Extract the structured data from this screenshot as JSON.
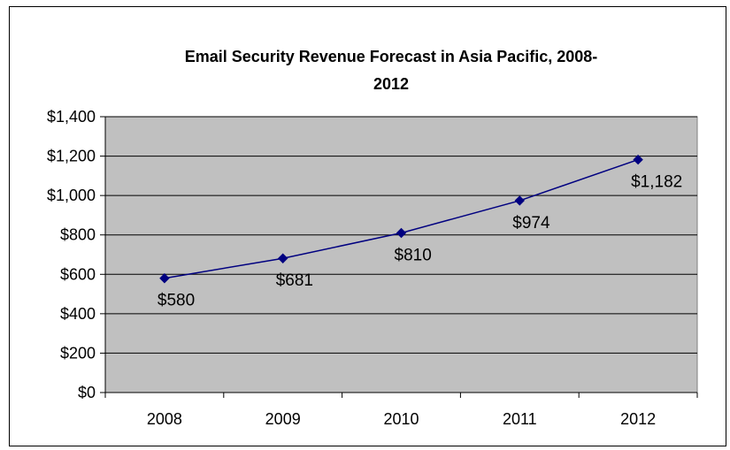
{
  "chart_data": {
    "type": "line",
    "title_line1": "Email Security Revenue Forecast in Asia Pacific, 2008-",
    "title_line2": "2012",
    "xlabel": "",
    "ylabel": "",
    "categories": [
      "2008",
      "2009",
      "2010",
      "2011",
      "2012"
    ],
    "series": [
      {
        "values": [
          580,
          681,
          810,
          974,
          1182
        ],
        "data_labels": [
          "$580",
          "$681",
          "$810",
          "$974",
          "$1,182"
        ]
      }
    ],
    "ylim": [
      0,
      1400
    ],
    "ytick_values": [
      0,
      200,
      400,
      600,
      800,
      1000,
      1200,
      1400
    ],
    "ytick_labels": [
      "$0",
      "$200",
      "$400",
      "$600",
      "$800",
      "$1,000",
      "$1,200",
      "$1,400"
    ],
    "grid": true,
    "legend": "none",
    "colors": {
      "plot_background": "#c0c0c0",
      "line": "#000080",
      "gridline": "#000000"
    }
  }
}
